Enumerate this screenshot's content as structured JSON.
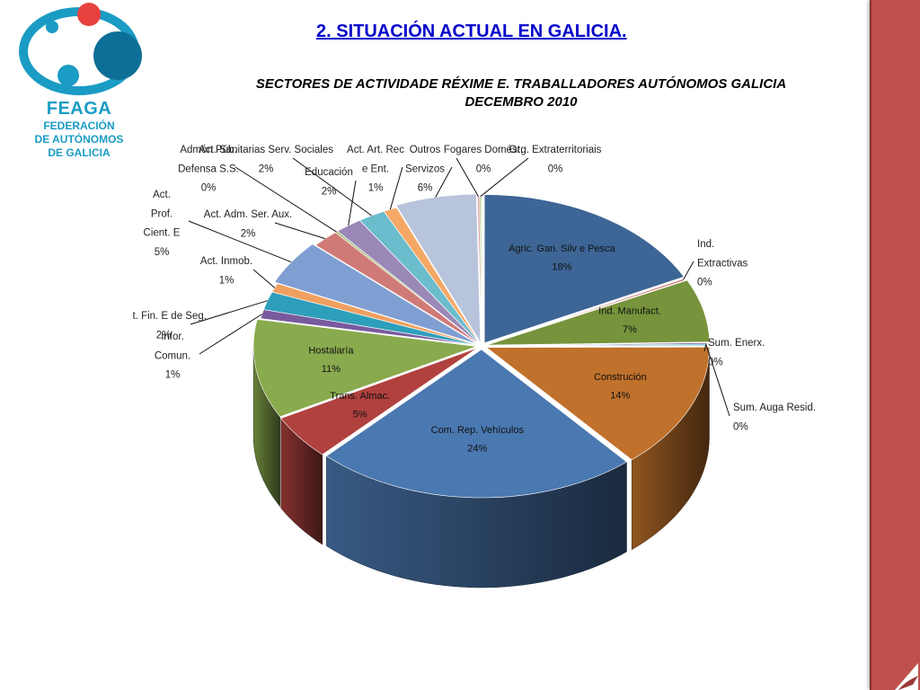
{
  "logo": {
    "name": "FEAGA",
    "lines": [
      "FEDERACIÓN",
      "DE AUTÓNOMOS",
      "DE GALICIA"
    ]
  },
  "section_title": "2. SITUACIÓN ACTUAL EN GALICIA.",
  "subtitle_lines": [
    "SECTORES DE ACTIVIDADE RÉXIME E. TRABALLADORES AUTÓNOMOS GALICIA",
    "DECEMBRO  2010"
  ],
  "colors": {
    "accent_bar": "#c0504d",
    "title_link": "#0000cc",
    "logo_blue": "#1a9cc4",
    "logo_red": "#e8423f"
  },
  "chart_data": {
    "type": "pie",
    "style": "3d-exploded-cylinder",
    "title": "",
    "legend": "none",
    "slices": [
      {
        "label": [
          "Agric. Gan. Silv e Pesca"
        ],
        "value": 18,
        "display": "18%",
        "color": "#3d6595",
        "label_pos": "inside"
      },
      {
        "label": [
          "Ind.",
          "Extractivas"
        ],
        "value": 0.15,
        "display": "0%",
        "color": "#c0504d",
        "label_pos": "outside"
      },
      {
        "label": [
          "Ind. Manufact."
        ],
        "value": 7,
        "display": "7%",
        "color": "#77933c",
        "label_pos": "inside"
      },
      {
        "label": [
          "Sum. Enerx."
        ],
        "value": 0.15,
        "display": "0%",
        "color": "#8064a2",
        "label_pos": "outside"
      },
      {
        "label": [
          "Sum. Auga Resid."
        ],
        "value": 0.15,
        "display": "0%",
        "color": "#4bacc6",
        "label_pos": "outside"
      },
      {
        "label": [
          "Construción"
        ],
        "value": 14,
        "display": "14%",
        "color": "#c0712b",
        "label_pos": "inside"
      },
      {
        "label": [
          "Com. Rep. Vehículos"
        ],
        "value": 24,
        "display": "24%",
        "color": "#4a78b0",
        "label_pos": "inside"
      },
      {
        "label": [
          "Trans. Almac."
        ],
        "value": 5,
        "display": "5%",
        "color": "#b0413e",
        "label_pos": "inside"
      },
      {
        "label": [
          "Hostalaría"
        ],
        "value": 11,
        "display": "11%",
        "color": "#8aaa4e",
        "label_pos": "inside"
      },
      {
        "label": [
          "Infor.",
          "Comun."
        ],
        "value": 1,
        "display": "1%",
        "color": "#7a5a9e",
        "label_pos": "outside"
      },
      {
        "label": [
          "Act. Fin. E de Seg."
        ],
        "value": 2,
        "display": "2%",
        "color": "#2e9fba",
        "label_pos": "outside"
      },
      {
        "label": [
          "Act. Inmob."
        ],
        "value": 1,
        "display": "1%",
        "color": "#f0a060",
        "label_pos": "outside"
      },
      {
        "label": [
          "Act.",
          "Prof.",
          "Cient. E"
        ],
        "value": 5,
        "display": "5%",
        "color": "#7f9ed2",
        "label_pos": "outside"
      },
      {
        "label": [
          "Act. Adm. Ser. Aux."
        ],
        "value": 2,
        "display": "2%",
        "color": "#d07a78",
        "label_pos": "outside"
      },
      {
        "label": [
          "Admón Púb.",
          "Defensa S.S."
        ],
        "value": 0.2,
        "display": "0%",
        "color": "#a8c07a",
        "label_pos": "outside"
      },
      {
        "label": [
          "Educación"
        ],
        "value": 2,
        "display": "2%",
        "color": "#9a88b8",
        "label_pos": "outside"
      },
      {
        "label": [
          "Act. Sanitarias Serv. Sociales"
        ],
        "value": 2,
        "display": "2%",
        "color": "#6bbccc",
        "label_pos": "outside"
      },
      {
        "label": [
          "Act. Art. Rec",
          "e Ent."
        ],
        "value": 1,
        "display": "1%",
        "color": "#f5a866",
        "label_pos": "outside"
      },
      {
        "label": [
          "Outros",
          "Servizos"
        ],
        "value": 6,
        "display": "6%",
        "color": "#b8c4dc",
        "label_pos": "outside"
      },
      {
        "label": [
          "Fogares Domést."
        ],
        "value": 0.15,
        "display": "0%",
        "color": "#d9a0a0",
        "label_pos": "outside"
      },
      {
        "label": [
          "Org. Extraterritoriais"
        ],
        "value": 0.15,
        "display": "0%",
        "color": "#c8d8a8",
        "label_pos": "outside"
      }
    ]
  }
}
